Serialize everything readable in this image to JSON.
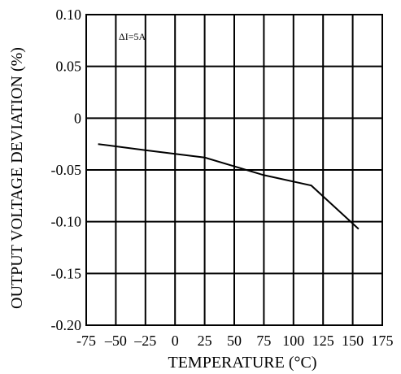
{
  "chart_data": {
    "type": "line",
    "xlabel": "TEMPERATURE (°C)",
    "ylabel": "OUTPUT VOLTAGE DEVIATION (%)",
    "annotation": "ΔI=5A",
    "xlim": [
      -75,
      175
    ],
    "ylim": [
      -0.2,
      0.1
    ],
    "x_ticks": [
      -75,
      -50,
      -25,
      0,
      25,
      50,
      75,
      100,
      125,
      150,
      175
    ],
    "x_tick_labels": [
      "-75",
      "–50",
      "–25",
      "0",
      "25",
      "50",
      "75",
      "100",
      "125",
      "150",
      "175"
    ],
    "y_ticks": [
      0.1,
      0.05,
      0,
      -0.05,
      -0.1,
      -0.15,
      -0.2
    ],
    "y_tick_labels": [
      "0.10",
      "0.05",
      "0",
      "-0.05",
      "-0.10",
      "-0.15",
      "-0.20"
    ],
    "grid": true,
    "series": [
      {
        "x": [
          -65,
          -25,
          25,
          75,
          115,
          155
        ],
        "y": [
          -0.025,
          -0.031,
          -0.038,
          -0.055,
          -0.065,
          -0.107
        ]
      }
    ]
  }
}
